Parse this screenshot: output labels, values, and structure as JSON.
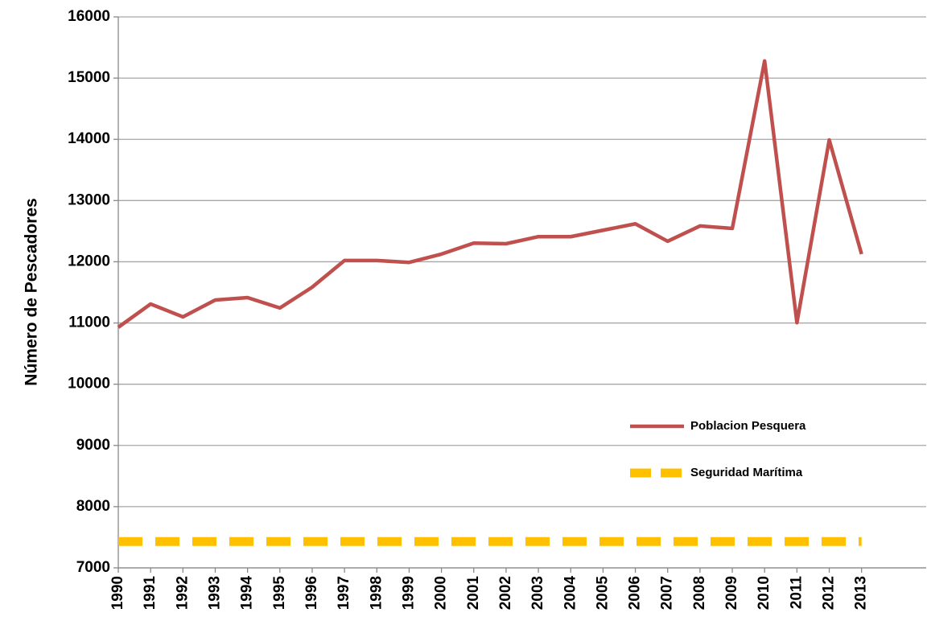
{
  "chart_data": {
    "type": "line",
    "y_label": "Número de Pescadores",
    "categories": [
      "1990",
      "1991",
      "1992",
      "1993",
      "1994",
      "1995",
      "1996",
      "1997",
      "1998",
      "1999",
      "2000",
      "2001",
      "2002",
      "2003",
      "2004",
      "2005",
      "2006",
      "2007",
      "2008",
      "2009",
      "2010",
      "2011",
      "2012",
      "2013"
    ],
    "series": [
      {
        "name": "Poblacion Pesquera",
        "color": "#c0504d",
        "values": [
          10930,
          11310,
          11100,
          11375,
          11415,
          11245,
          11585,
          12020,
          12020,
          11990,
          12125,
          12305,
          12295,
          12410,
          12410,
          12515,
          12620,
          12335,
          12585,
          12545,
          15280,
          11005,
          13990,
          12125
        ]
      },
      {
        "name": "Seguridad Marítima",
        "color": "#ffc000",
        "dashed": true,
        "values": [
          7430,
          7430,
          7430,
          7430,
          7430,
          7430,
          7430,
          7430,
          7430,
          7430,
          7430,
          7430,
          7430,
          7430,
          7430,
          7430,
          7430,
          7430,
          7430,
          7430,
          7430,
          7430,
          7430,
          7430
        ]
      }
    ],
    "ylim": [
      7000,
      16000
    ],
    "yticks": [
      7000,
      8000,
      9000,
      10000,
      11000,
      12000,
      13000,
      14000,
      15000,
      16000
    ],
    "grid": true,
    "legend": "right"
  }
}
